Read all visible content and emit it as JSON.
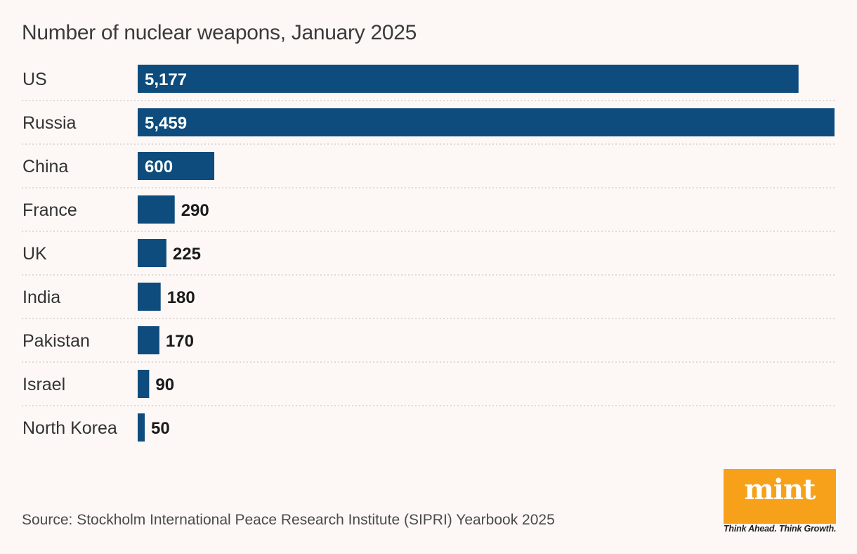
{
  "chart_data": {
    "type": "bar",
    "orientation": "horizontal",
    "title": "Number of nuclear weapons, January 2025",
    "categories": [
      "US",
      "Russia",
      "China",
      "France",
      "UK",
      "India",
      "Pakistan",
      "Israel",
      "North Korea"
    ],
    "values": [
      5177,
      5459,
      600,
      290,
      225,
      180,
      170,
      90,
      50
    ],
    "value_labels": [
      "5,177",
      "5,459",
      "600",
      "290",
      "225",
      "180",
      "170",
      "90",
      "50"
    ],
    "xlim": [
      0,
      5459
    ],
    "xlabel": "",
    "ylabel": "",
    "grid": false,
    "legend": "none",
    "bar_color": "#0d4c7c"
  },
  "source": "Source: Stockholm International Peace Research Institute (SIPRI) Yearbook 2025",
  "logo": {
    "word": "mint",
    "tagline": "Think Ahead. Think Growth.",
    "color": "#f7a11a"
  }
}
